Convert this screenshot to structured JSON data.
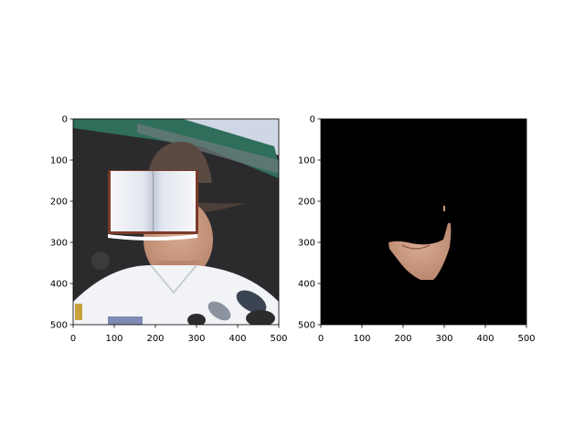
{
  "chart_data": [
    {
      "type": "image",
      "title": "",
      "xlabel": "",
      "ylabel": "",
      "xlim": [
        0,
        500
      ],
      "ylim": [
        500,
        0
      ],
      "xticks": [
        0,
        100,
        200,
        300,
        400,
        500
      ],
      "yticks": [
        0,
        100,
        200,
        300,
        400,
        500
      ],
      "xtick_labels": [
        "0",
        "100",
        "200",
        "300",
        "400",
        "500"
      ],
      "ytick_labels": [
        "0",
        "100",
        "200",
        "300",
        "400",
        "500"
      ],
      "grid": false,
      "content": "photo of a man in a brown wide-brimmed hat and white uniform shirt, face covered by an open book icon, microphones at bottom"
    },
    {
      "type": "image",
      "title": "",
      "xlabel": "",
      "ylabel": "",
      "xlim": [
        0,
        500
      ],
      "ylim": [
        500,
        0
      ],
      "xticks": [
        0,
        100,
        200,
        300,
        400,
        500
      ],
      "yticks": [
        0,
        100,
        200,
        300,
        400,
        500
      ],
      "xtick_labels": [
        "0",
        "100",
        "200",
        "300",
        "400",
        "500"
      ],
      "ytick_labels": [
        "0",
        "100",
        "200",
        "300",
        "400",
        "500"
      ],
      "grid": false,
      "content": "black background with only the segmented lower face (mouth and chin) region visible"
    }
  ],
  "colors": {
    "background": "#000000",
    "skin": "#c89a7e",
    "hat": "#5a4a42",
    "shirt": "#f2f3f6",
    "awning": "#2f6e5a",
    "sky": "#cfd6e6"
  }
}
